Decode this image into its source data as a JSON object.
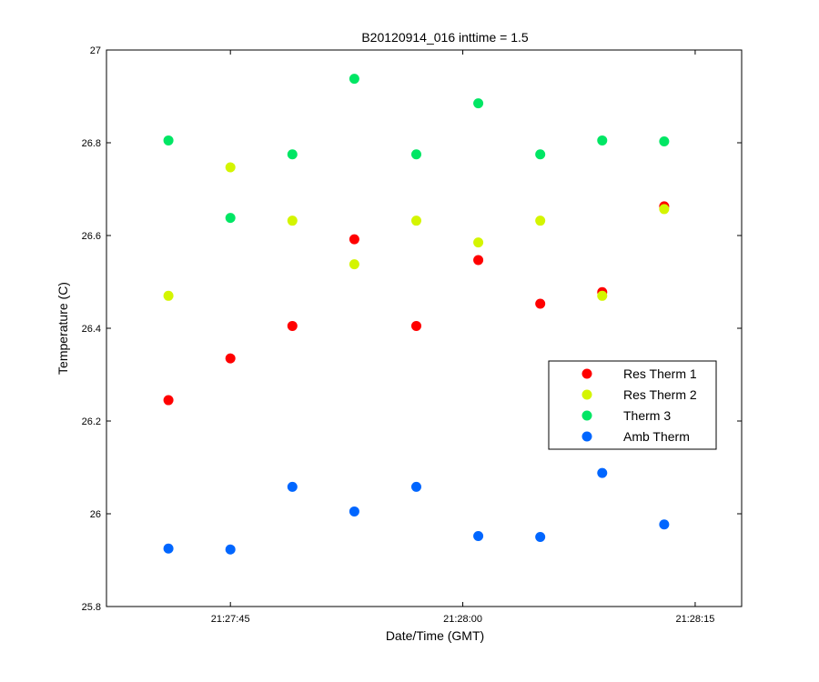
{
  "chart_data": {
    "type": "scatter",
    "title": "B20120914_016 inttime = 1.5",
    "xlabel": "Date/Time (GMT)",
    "ylabel": "Temperature (C)",
    "xlim": [
      "21:27:37",
      "21:28:18"
    ],
    "ylim": [
      25.8,
      27.0
    ],
    "x_ticks": [
      "21:27:45",
      "21:28:00",
      "21:28:15"
    ],
    "y_ticks": [
      "25.8",
      "26",
      "26.2",
      "26.4",
      "26.6",
      "26.8",
      "27"
    ],
    "grid": false,
    "legend_position": "right",
    "x": [
      "21:27:41",
      "21:27:45",
      "21:27:49",
      "21:27:53",
      "21:27:57",
      "21:28:01",
      "21:28:05",
      "21:28:09",
      "21:28:13"
    ],
    "series": [
      {
        "name": "Res Therm 1",
        "color": "#ff0000",
        "values": [
          26.245,
          26.335,
          26.405,
          26.592,
          26.405,
          26.547,
          26.453,
          26.478,
          26.663
        ]
      },
      {
        "name": "Res Therm 2",
        "color": "#d4f500",
        "values": [
          26.47,
          26.747,
          26.632,
          26.538,
          26.632,
          26.585,
          26.632,
          26.47,
          26.657
        ]
      },
      {
        "name": "Therm 3",
        "color": "#00e664",
        "values": [
          26.805,
          26.638,
          26.775,
          26.938,
          26.775,
          26.885,
          26.775,
          26.805,
          26.803
        ]
      },
      {
        "name": "Amb Therm",
        "color": "#0066ff",
        "values": [
          25.925,
          25.923,
          26.058,
          26.005,
          26.058,
          25.952,
          25.95,
          26.088,
          25.977
        ]
      }
    ]
  }
}
